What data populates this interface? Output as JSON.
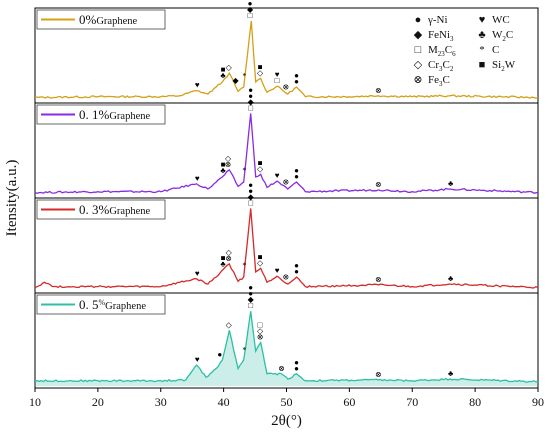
{
  "chart_data": {
    "type": "line",
    "xlabel": "2θ(°)",
    "ylabel": "Itensity(a.u.)",
    "xlim": [
      10,
      90
    ],
    "xticks": [
      10,
      20,
      30,
      40,
      50,
      60,
      70,
      80,
      90
    ],
    "grid": false,
    "series": [
      {
        "name": "0%Graphene",
        "color": "#d4a017",
        "legend_main": "0%",
        "legend_sub": "Graphene",
        "points": [
          [
            10,
            0.04
          ],
          [
            20,
            0.05
          ],
          [
            30,
            0.05
          ],
          [
            33,
            0.06
          ],
          [
            35.7,
            0.12
          ],
          [
            37.5,
            0.08
          ],
          [
            38.8,
            0.16
          ],
          [
            39.8,
            0.22
          ],
          [
            40.9,
            0.32
          ],
          [
            42.3,
            0.11
          ],
          [
            43.2,
            0.16
          ],
          [
            44.4,
            0.92
          ],
          [
            45.1,
            0.22
          ],
          [
            45.9,
            0.26
          ],
          [
            46.9,
            0.1
          ],
          [
            48.5,
            0.17
          ],
          [
            50.2,
            0.08
          ],
          [
            51.6,
            0.16
          ],
          [
            53,
            0.05
          ],
          [
            60,
            0.05
          ],
          [
            64.6,
            0.06
          ],
          [
            70,
            0.05
          ],
          [
            76,
            0.06
          ],
          [
            90,
            0.04
          ]
        ],
        "marks": [
          {
            "x": 44.2,
            "symbols": [
              "●",
              "●",
              "◆",
              "□"
            ]
          },
          {
            "x": 39.9,
            "symbols": [
              "■",
              "♣"
            ]
          },
          {
            "x": 40.8,
            "symbols": [
              "◇"
            ]
          },
          {
            "x": 41.9,
            "symbols": [
              "◆"
            ]
          },
          {
            "x": 43.3,
            "symbols": [
              "*"
            ]
          },
          {
            "x": 45.8,
            "symbols": [
              "■",
              "◇"
            ]
          },
          {
            "x": 48.5,
            "symbols": [
              "♥",
              "□"
            ]
          },
          {
            "x": 35.8,
            "symbols": [
              "♥"
            ]
          },
          {
            "x": 49.9,
            "symbols": [
              "⊗"
            ]
          },
          {
            "x": 51.6,
            "symbols": [
              "●",
              "●"
            ]
          },
          {
            "x": 64.6,
            "symbols": [
              "⊗"
            ]
          }
        ]
      },
      {
        "name": "0.1%Graphene",
        "color": "#8a2be2",
        "legend_main": "0. 1%",
        "legend_sub": "Graphene",
        "points": [
          [
            10,
            0.04
          ],
          [
            20,
            0.05
          ],
          [
            30,
            0.05
          ],
          [
            35.7,
            0.14
          ],
          [
            37.5,
            0.08
          ],
          [
            38.8,
            0.16
          ],
          [
            39.8,
            0.22
          ],
          [
            40.9,
            0.3
          ],
          [
            42.3,
            0.11
          ],
          [
            43.2,
            0.16
          ],
          [
            44.3,
            0.95
          ],
          [
            45.1,
            0.22
          ],
          [
            45.9,
            0.25
          ],
          [
            46.9,
            0.1
          ],
          [
            48.5,
            0.17
          ],
          [
            50.2,
            0.08
          ],
          [
            51.6,
            0.16
          ],
          [
            53,
            0.05
          ],
          [
            64.6,
            0.07
          ],
          [
            70,
            0.05
          ],
          [
            76,
            0.08
          ],
          [
            90,
            0.04
          ]
        ],
        "marks": [
          {
            "x": 44.3,
            "symbols": [
              "●",
              "●",
              "◆",
              "□"
            ]
          },
          {
            "x": 39.9,
            "symbols": [
              "■",
              "♣"
            ]
          },
          {
            "x": 40.7,
            "symbols": [
              "◇",
              "⊗"
            ]
          },
          {
            "x": 43.3,
            "symbols": [
              "*"
            ]
          },
          {
            "x": 45.8,
            "symbols": [
              "■",
              "◇"
            ]
          },
          {
            "x": 48.5,
            "symbols": [
              "♥"
            ]
          },
          {
            "x": 35.8,
            "symbols": [
              "♥"
            ]
          },
          {
            "x": 49.9,
            "symbols": [
              "⊗"
            ]
          },
          {
            "x": 51.6,
            "symbols": [
              "●",
              "●"
            ]
          },
          {
            "x": 64.6,
            "symbols": [
              "⊗"
            ]
          },
          {
            "x": 76.1,
            "symbols": [
              "♣"
            ]
          }
        ]
      },
      {
        "name": "0.3%Graphene",
        "color": "#d42a2a",
        "legend_main": "0. 3%",
        "legend_sub": "Graphene",
        "points": [
          [
            10,
            0.04
          ],
          [
            11.5,
            0.1
          ],
          [
            13,
            0.05
          ],
          [
            20,
            0.05
          ],
          [
            30,
            0.05
          ],
          [
            35.7,
            0.14
          ],
          [
            37.5,
            0.08
          ],
          [
            38.8,
            0.16
          ],
          [
            39.8,
            0.24
          ],
          [
            40.9,
            0.31
          ],
          [
            42.3,
            0.11
          ],
          [
            43.2,
            0.16
          ],
          [
            44.3,
            0.95
          ],
          [
            45.1,
            0.22
          ],
          [
            45.9,
            0.26
          ],
          [
            46.9,
            0.1
          ],
          [
            48.5,
            0.17
          ],
          [
            50.2,
            0.08
          ],
          [
            51.6,
            0.16
          ],
          [
            53,
            0.05
          ],
          [
            64.6,
            0.07
          ],
          [
            70,
            0.05
          ],
          [
            76,
            0.08
          ],
          [
            90,
            0.04
          ]
        ],
        "marks": [
          {
            "x": 44.3,
            "symbols": [
              "●",
              "●",
              "◆",
              "□"
            ]
          },
          {
            "x": 39.9,
            "symbols": [
              "■",
              "♣"
            ]
          },
          {
            "x": 40.8,
            "symbols": [
              "◇",
              "⊗"
            ]
          },
          {
            "x": 43.3,
            "symbols": [
              "*"
            ]
          },
          {
            "x": 45.8,
            "symbols": [
              "■",
              "◇"
            ]
          },
          {
            "x": 48.5,
            "symbols": [
              "♥"
            ]
          },
          {
            "x": 35.8,
            "symbols": [
              "♥"
            ]
          },
          {
            "x": 49.9,
            "symbols": [
              "⊗"
            ]
          },
          {
            "x": 51.6,
            "symbols": [
              "●",
              "●"
            ]
          },
          {
            "x": 64.6,
            "symbols": [
              "⊗"
            ]
          },
          {
            "x": 76.1,
            "symbols": [
              "♣"
            ]
          }
        ]
      },
      {
        "name": "0.5%Graphene",
        "color": "#2ebfa5",
        "legend_main": "0. 5",
        "legend_pct": "%",
        "legend_sub": "Graphene",
        "points": [
          [
            10,
            0.06
          ],
          [
            20,
            0.06
          ],
          [
            30,
            0.06
          ],
          [
            34,
            0.07
          ],
          [
            35.7,
            0.24
          ],
          [
            37.2,
            0.1
          ],
          [
            38.8,
            0.2
          ],
          [
            39.8,
            0.3
          ],
          [
            40.9,
            0.64
          ],
          [
            42.3,
            0.2
          ],
          [
            43.2,
            0.3
          ],
          [
            44.3,
            0.86
          ],
          [
            45.1,
            0.4
          ],
          [
            45.9,
            0.5
          ],
          [
            46.9,
            0.14
          ],
          [
            49.2,
            0.14
          ],
          [
            50.2,
            0.08
          ],
          [
            51.6,
            0.14
          ],
          [
            53,
            0.06
          ],
          [
            64.6,
            0.07
          ],
          [
            70,
            0.06
          ],
          [
            76,
            0.08
          ],
          [
            90,
            0.05
          ]
        ],
        "marks": [
          {
            "x": 44.3,
            "symbols": [
              "●",
              "●",
              "◆",
              "□"
            ]
          },
          {
            "x": 40.8,
            "symbols": [
              "◇"
            ]
          },
          {
            "x": 39.4,
            "symbols": [
              "●"
            ]
          },
          {
            "x": 43.3,
            "symbols": [
              "*"
            ]
          },
          {
            "x": 45.8,
            "symbols": [
              "□",
              "◇",
              "⊗"
            ]
          },
          {
            "x": 35.8,
            "symbols": [
              "♥"
            ]
          },
          {
            "x": 49.2,
            "symbols": [
              "⊗"
            ]
          },
          {
            "x": 51.6,
            "symbols": [
              "●",
              "●"
            ]
          },
          {
            "x": 64.6,
            "symbols": [
              "⊗"
            ]
          },
          {
            "x": 76.1,
            "symbols": [
              "♣"
            ]
          }
        ]
      }
    ],
    "phase_legend": [
      {
        "symbol": "●",
        "main": "γ-Ni",
        "sub": ""
      },
      {
        "symbol": "◆",
        "main": "FeNi",
        "sub": "3",
        "tail": ""
      },
      {
        "symbol": "□",
        "main": "M",
        "sub": "23",
        "tail": "C",
        "sub2": "6"
      },
      {
        "symbol": "◇",
        "main": "Cr",
        "sub": "3",
        "tail": "C",
        "sub2": "2"
      },
      {
        "symbol": "⊗",
        "main": "Fe",
        "sub": "3",
        "tail": "C"
      },
      {
        "symbol": "♥",
        "main": "WC",
        "sub": ""
      },
      {
        "symbol": "♣",
        "main": "W",
        "sub": "2",
        "tail": "C"
      },
      {
        "symbol": "*",
        "main": "C",
        "sub": ""
      },
      {
        "symbol": "■",
        "main": "Si",
        "sub": "2",
        "tail": "W"
      }
    ]
  }
}
